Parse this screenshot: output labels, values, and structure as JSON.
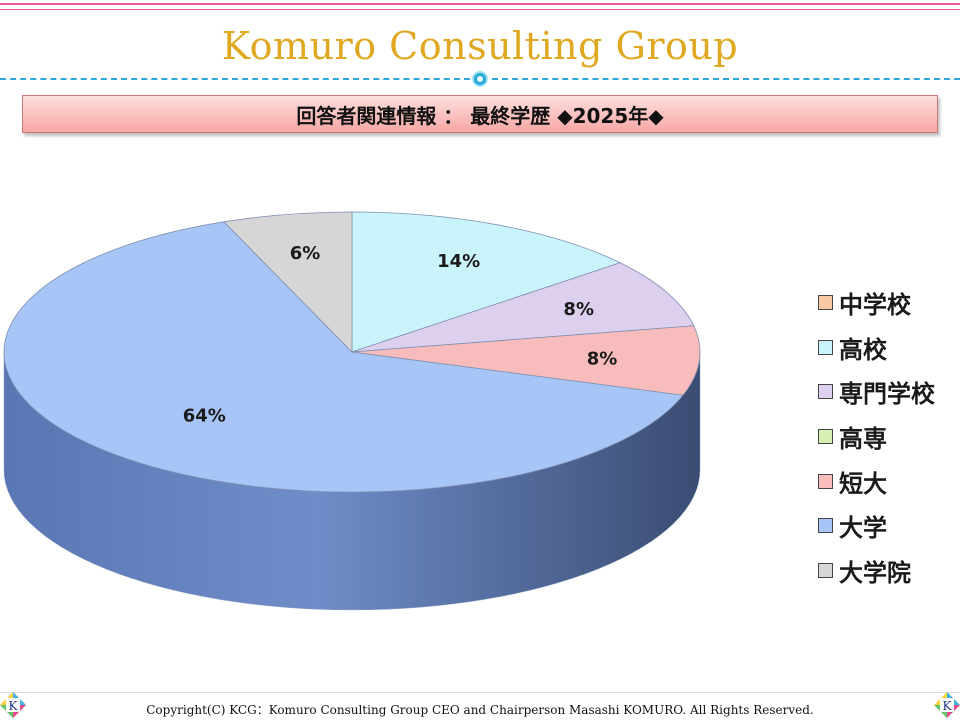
{
  "header": {
    "title": "Komuro Consulting Group",
    "banner": "回答者関連情報 ： 最終学歴 ◆2025年◆"
  },
  "footer": {
    "copyright": "Copyright(C) KCG：Komuro Consulting Group CEO and Chairperson Masashi KOMURO. All Rights Reserved.",
    "logo_letter": "K"
  },
  "colors": {
    "title": "#e0a820",
    "accent_line": "#2aa9d8",
    "stripe": "#e8559a"
  },
  "chart_data": {
    "type": "pie",
    "title": "",
    "categories": [
      "中学校",
      "高校",
      "専門学校",
      "高専",
      "短大",
      "大学",
      "大学院"
    ],
    "values": [
      0,
      14,
      8,
      0,
      8,
      64,
      6
    ],
    "labels": [
      "",
      "14%",
      "8%",
      "",
      "8%",
      "64%",
      "6%"
    ],
    "colors": [
      "#f9c9a3",
      "#c9f4fb",
      "#ddd0ee",
      "#d6f0b4",
      "#f9bcbc",
      "#a8c5f7",
      "#d6d6d6"
    ],
    "legend_position": "right",
    "style": "3d"
  }
}
